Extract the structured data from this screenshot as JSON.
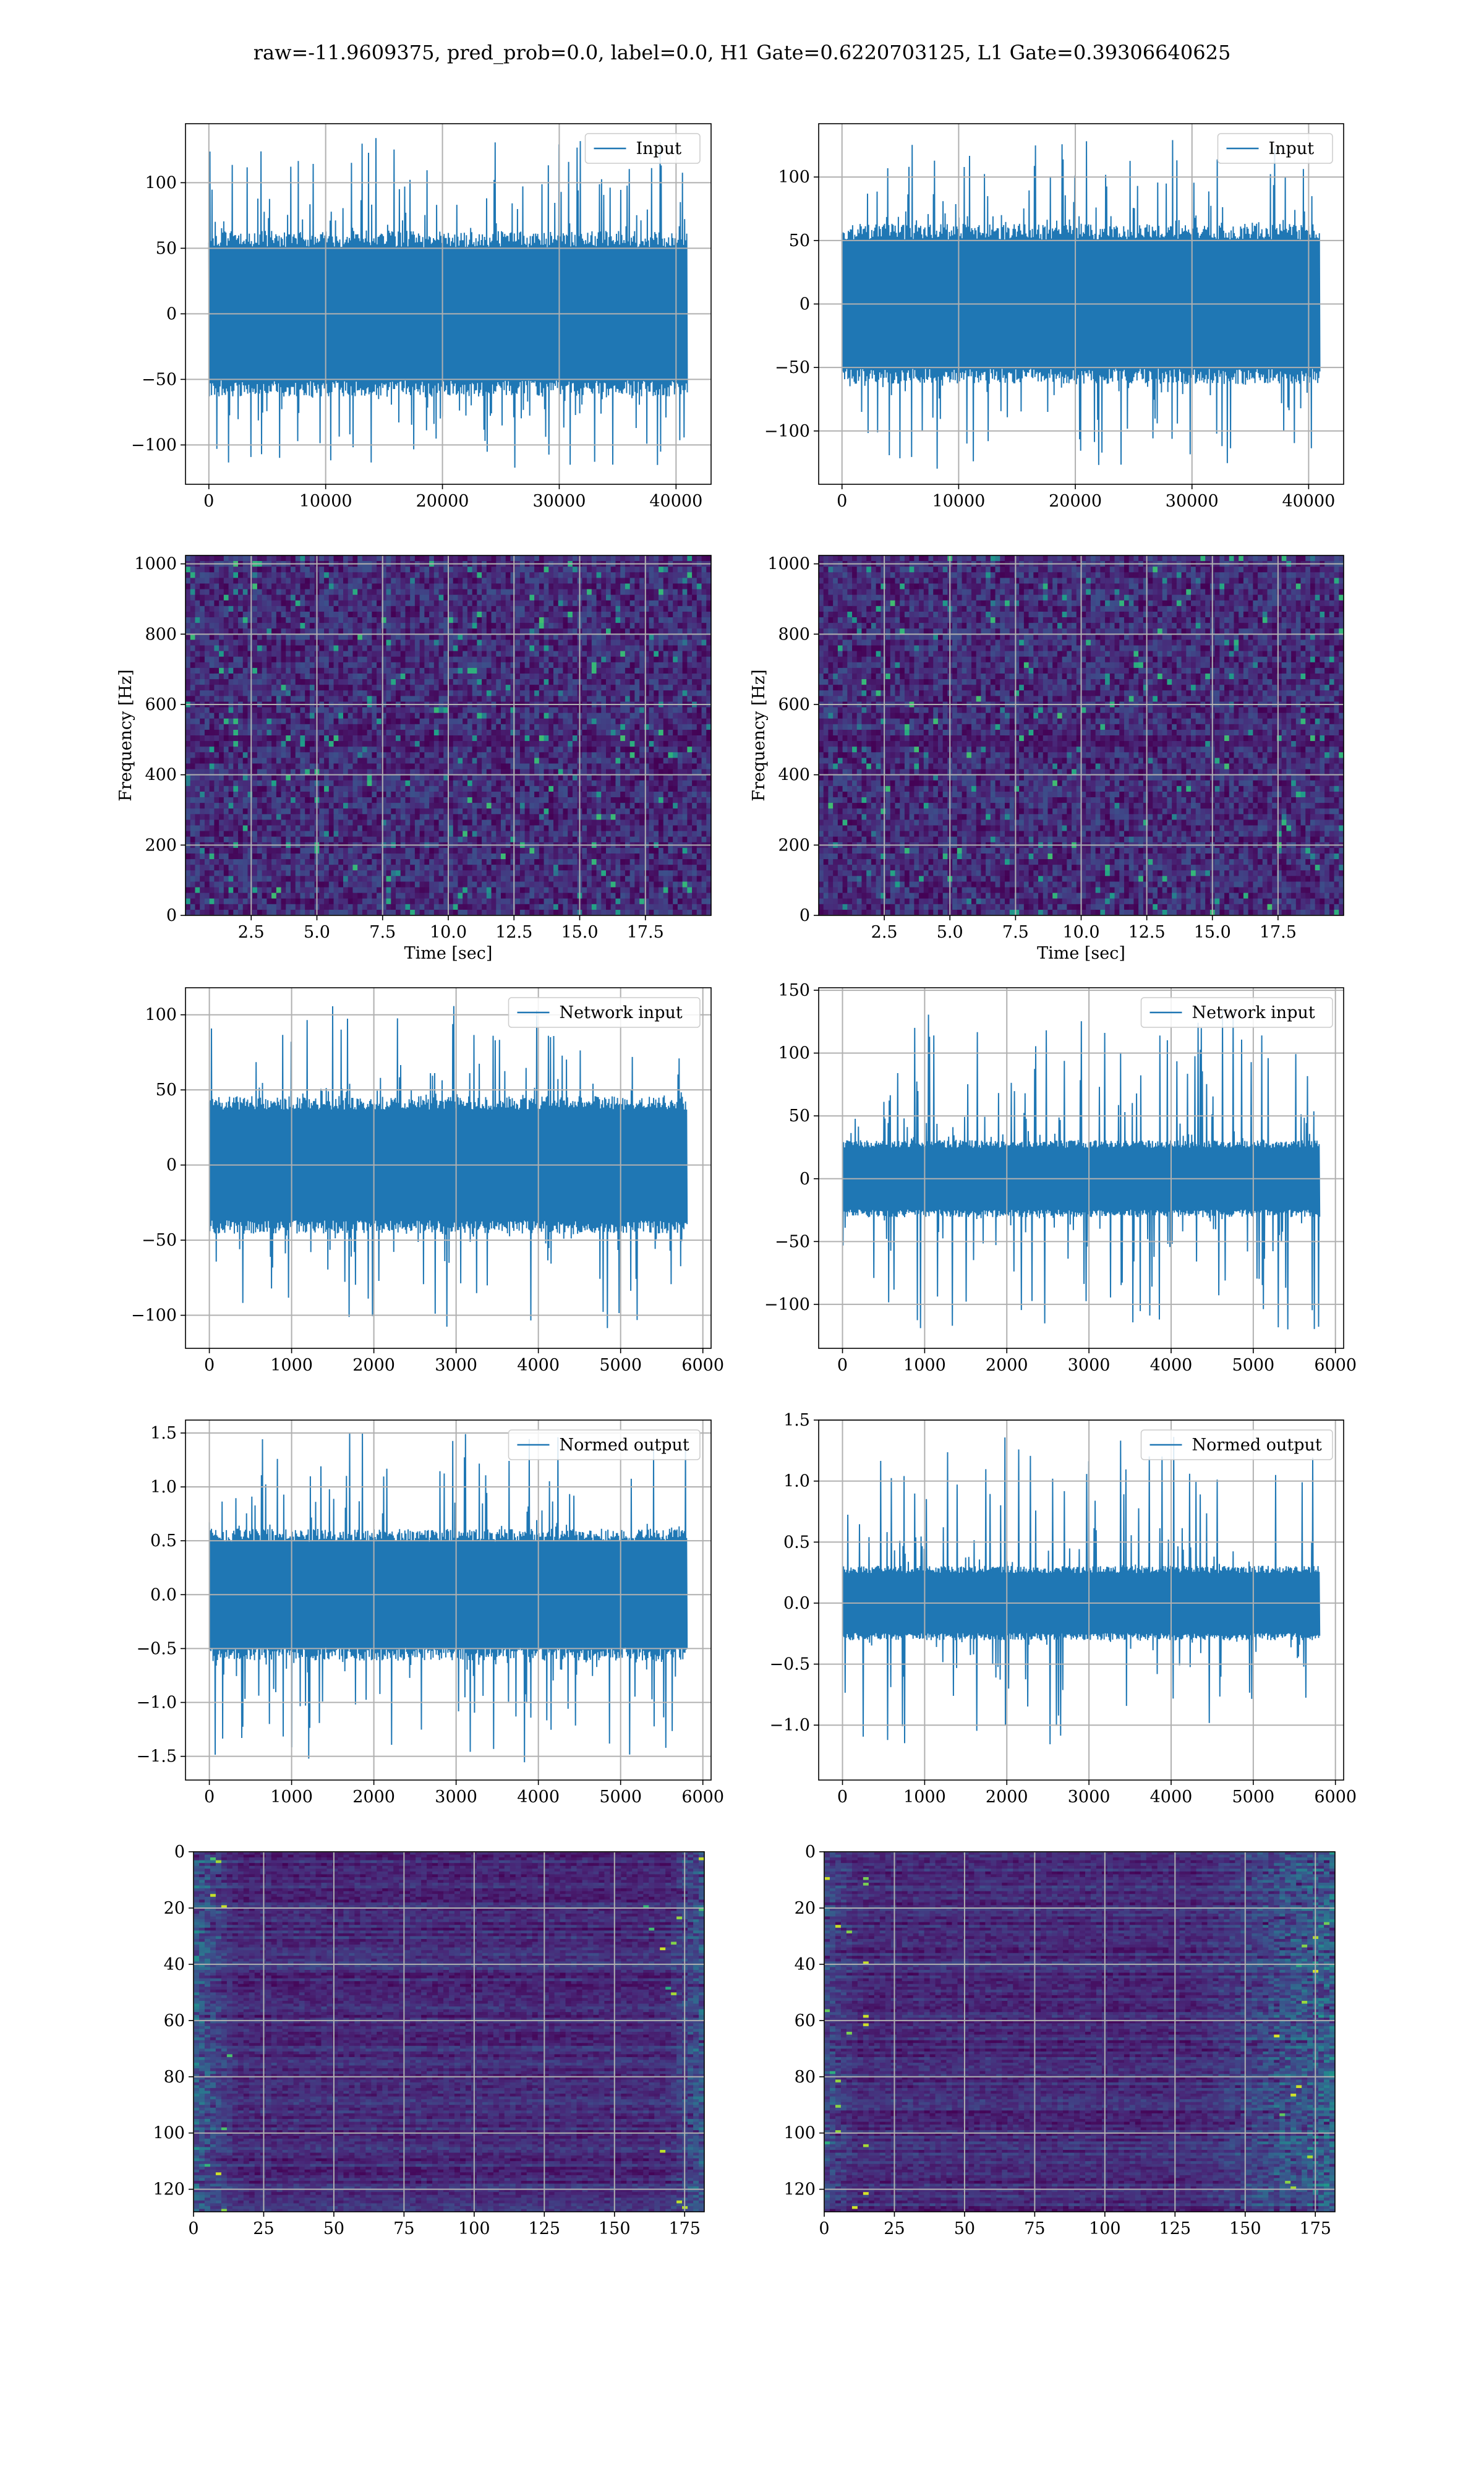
{
  "figure": {
    "suptitle": "raw=-11.9609375, pred_prob=0.0, label=0.0, H1 Gate=0.6220703125, L1 Gate=0.39306640625",
    "colors": {
      "line": "#1f77b4",
      "grid": "#b0b0b0"
    }
  },
  "chart_data": [
    {
      "id": "input-h1",
      "type": "line",
      "legend": "Input",
      "legend_loc": "upper right",
      "xlabel": "",
      "ylabel": "",
      "xlim": [
        -2000,
        43000
      ],
      "ylim": [
        -130,
        145
      ],
      "xticks": [
        0,
        10000,
        20000,
        30000,
        40000
      ],
      "yticks": [
        -100,
        -50,
        0,
        50,
        100
      ],
      "series": [
        {
          "x_start": 0,
          "x_end": 40960,
          "core_amplitude": 62,
          "peak_max": 138,
          "peak_min": -118
        }
      ]
    },
    {
      "id": "input-l1",
      "type": "line",
      "legend": "Input",
      "legend_loc": "upper right",
      "xlabel": "",
      "ylabel": "",
      "xlim": [
        -2000,
        43000
      ],
      "ylim": [
        -142,
        142
      ],
      "xticks": [
        0,
        10000,
        20000,
        30000,
        40000
      ],
      "yticks": [
        -100,
        -50,
        0,
        50,
        100
      ],
      "series": [
        {
          "x_start": 0,
          "x_end": 40960,
          "core_amplitude": 62,
          "peak_max": 130,
          "peak_min": -130
        }
      ]
    },
    {
      "id": "spectrogram-h1",
      "type": "heatmap",
      "xlabel": "Time [sec]",
      "ylabel": "Frequency [Hz]",
      "xlim": [
        0,
        20
      ],
      "ylim": [
        0,
        1024
      ],
      "xticks": [
        2.5,
        5.0,
        7.5,
        10.0,
        12.5,
        15.0,
        17.5
      ],
      "yticks": [
        0,
        200,
        400,
        600,
        800,
        1000
      ],
      "colormap": "viridis"
    },
    {
      "id": "spectrogram-l1",
      "type": "heatmap",
      "xlabel": "Time [sec]",
      "ylabel": "Frequency [Hz]",
      "xlim": [
        0,
        20
      ],
      "ylim": [
        0,
        1024
      ],
      "xticks": [
        2.5,
        5.0,
        7.5,
        10.0,
        12.5,
        15.0,
        17.5
      ],
      "yticks": [
        0,
        200,
        400,
        600,
        800,
        1000
      ],
      "colormap": "viridis"
    },
    {
      "id": "network-input-h1",
      "type": "line",
      "legend": "Network input",
      "legend_loc": "upper right",
      "xlabel": "",
      "ylabel": "",
      "xlim": [
        -290,
        6100
      ],
      "ylim": [
        -122,
        118
      ],
      "xticks": [
        0,
        1000,
        2000,
        3000,
        4000,
        5000,
        6000
      ],
      "yticks": [
        -100,
        -50,
        0,
        50,
        100
      ],
      "series": [
        {
          "x_start": 0,
          "x_end": 5808,
          "core_amplitude": 45,
          "peak_max": 106,
          "peak_min": -111
        }
      ]
    },
    {
      "id": "network-input-l1",
      "type": "line",
      "legend": "Network input",
      "legend_loc": "upper right",
      "xlabel": "",
      "ylabel": "",
      "xlim": [
        -290,
        6100
      ],
      "ylim": [
        -135,
        152
      ],
      "xticks": [
        0,
        1000,
        2000,
        3000,
        4000,
        5000,
        6000
      ],
      "yticks": [
        -100,
        -50,
        0,
        50,
        100,
        150
      ],
      "series": [
        {
          "x_start": 0,
          "x_end": 5808,
          "core_amplitude": 30,
          "peak_max": 138,
          "peak_min": -120
        }
      ]
    },
    {
      "id": "normed-output-h1",
      "type": "line",
      "legend": "Normed output",
      "legend_loc": "upper right",
      "xlabel": "",
      "ylabel": "",
      "xlim": [
        -290,
        6100
      ],
      "ylim": [
        -1.72,
        1.62
      ],
      "xticks": [
        0,
        1000,
        2000,
        3000,
        4000,
        5000,
        6000
      ],
      "yticks": [
        -1.5,
        -1.0,
        -0.5,
        0.0,
        0.5,
        1.0,
        1.5
      ],
      "series": [
        {
          "x_start": 0,
          "x_end": 5808,
          "core_amplitude": 0.6,
          "peak_max": 1.5,
          "peak_min": -1.58
        }
      ]
    },
    {
      "id": "normed-output-l1",
      "type": "line",
      "legend": "Normed output",
      "legend_loc": "upper right",
      "xlabel": "",
      "ylabel": "",
      "xlim": [
        -290,
        6100
      ],
      "ylim": [
        -1.45,
        1.5
      ],
      "xticks": [
        0,
        1000,
        2000,
        3000,
        4000,
        5000,
        6000
      ],
      "yticks": [
        -1.0,
        -0.5,
        0.0,
        0.5,
        1.0,
        1.5
      ],
      "series": [
        {
          "x_start": 0,
          "x_end": 5808,
          "core_amplitude": 0.3,
          "peak_max": 1.38,
          "peak_min": -1.22
        }
      ]
    },
    {
      "id": "feature-map-h1",
      "type": "heatmap",
      "xlabel": "",
      "ylabel": "",
      "xlim": [
        0,
        182
      ],
      "ylim": [
        128,
        0
      ],
      "xticks": [
        0,
        25,
        50,
        75,
        100,
        125,
        150,
        175
      ],
      "yticks": [
        0,
        20,
        40,
        60,
        80,
        100,
        120
      ],
      "colormap": "viridis"
    },
    {
      "id": "feature-map-l1",
      "type": "heatmap",
      "xlabel": "",
      "ylabel": "",
      "xlim": [
        0,
        182
      ],
      "ylim": [
        128,
        0
      ],
      "xticks": [
        0,
        25,
        50,
        75,
        100,
        125,
        150,
        175
      ],
      "yticks": [
        0,
        20,
        40,
        60,
        80,
        100,
        120
      ],
      "colormap": "viridis"
    }
  ]
}
